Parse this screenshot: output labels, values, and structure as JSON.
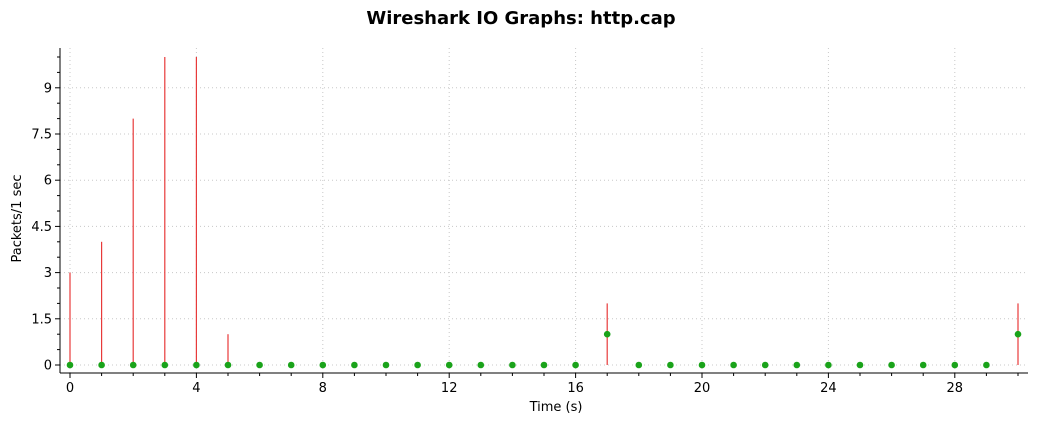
{
  "chart_data": {
    "type": "line",
    "title": "Wireshark IO Graphs: http.cap",
    "xlabel": "Time (s)",
    "ylabel": "Packets/1 sec",
    "xlim": [
      0,
      30
    ],
    "ylim": [
      0,
      10
    ],
    "x_ticks": [
      0,
      4,
      8,
      12,
      16,
      20,
      24,
      28
    ],
    "y_ticks": [
      "0",
      "1.5",
      "3",
      "4.5",
      "6",
      "7.5",
      "9"
    ],
    "grid": true,
    "legend": "none",
    "series": [
      {
        "style": "impulse",
        "color": "#e83a3a",
        "x": [
          0,
          1,
          2,
          3,
          4,
          5,
          6,
          7,
          8,
          9,
          10,
          11,
          12,
          13,
          14,
          15,
          16,
          17,
          18,
          19,
          20,
          21,
          22,
          23,
          24,
          25,
          26,
          27,
          28,
          29,
          30
        ],
        "values": [
          3,
          4,
          8,
          10,
          10,
          1,
          0,
          0,
          0,
          0,
          0,
          0,
          0,
          0,
          0,
          0,
          0,
          2,
          0,
          0,
          0,
          0,
          0,
          0,
          0,
          0,
          0,
          0,
          0,
          0,
          2
        ]
      },
      {
        "style": "dots",
        "color": "#1aa31a",
        "x": [
          0,
          1,
          2,
          3,
          4,
          5,
          6,
          7,
          8,
          9,
          10,
          11,
          12,
          13,
          14,
          15,
          16,
          17,
          18,
          19,
          20,
          21,
          22,
          23,
          24,
          25,
          26,
          27,
          28,
          29,
          30
        ],
        "values": [
          0,
          0,
          0,
          0,
          0,
          0,
          0,
          0,
          0,
          0,
          0,
          0,
          0,
          0,
          0,
          0,
          0,
          1,
          0,
          0,
          0,
          0,
          0,
          0,
          0,
          0,
          0,
          0,
          0,
          0,
          1
        ]
      }
    ]
  }
}
